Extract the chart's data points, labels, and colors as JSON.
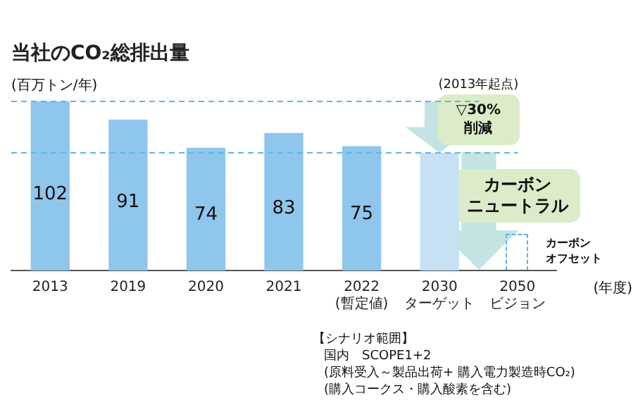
{
  "chart_data": {
    "type": "bar",
    "title": "当社のCO₂総排出量",
    "ylabel": "(百万トン/年)",
    "xlabel": "(年度)",
    "categories": [
      "2013",
      "2019",
      "2020",
      "2021",
      "2022\n(暫定値)",
      "2030\nターゲット",
      "2050\nビジョン"
    ],
    "values": [
      102,
      91,
      74,
      83,
      75,
      71,
      null
    ],
    "colors": [
      "#8ec6ec",
      "#8ec6ec",
      "#8ec6ec",
      "#8ec6ec",
      "#8ec6ec",
      "#c6e0f4",
      "#c6e0f4"
    ],
    "value_labels": [
      "102",
      "91",
      "74",
      "83",
      "75",
      null,
      null
    ],
    "ref_lines": [
      {
        "axis": "y",
        "value": 102,
        "color": "#5bb8e8",
        "line_style": "dashed"
      },
      {
        "axis": "y",
        "value": 71,
        "color": "#5bb8e8",
        "line_style": "dashed"
      }
    ],
    "annotations": [
      "(2013年起点)",
      "▽30%\n削減",
      "カーボン",
      "ニュートラル",
      "カーボン",
      "オフセット",
      "【シナリオ範囲】",
      "国内　SCOPE1+2",
      "(原料受入～製品出荷+ 購入電力製造時CO₂)",
      "(購入コークス・購入酸素を含む)"
    ],
    "legend": false,
    "grid": false
  }
}
